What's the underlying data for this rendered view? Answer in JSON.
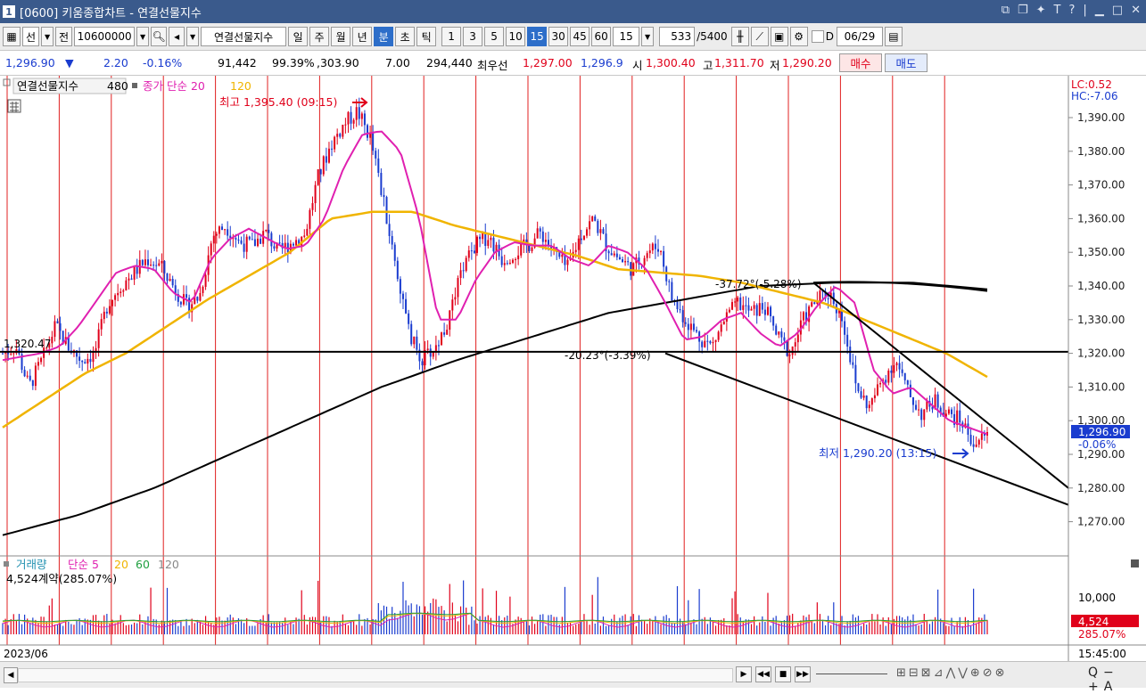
{
  "window": {
    "code": "1",
    "title": "[0600] 키움종합차트 - 연결선물지수",
    "controls": [
      "restore-icon",
      "tile-icon",
      "pin-icon",
      "font-icon",
      "help-icon",
      "minimize-icon",
      "maximize-icon",
      "close-icon"
    ]
  },
  "toolbar": {
    "type_select": "선",
    "period_label": "전",
    "code_value": "10600000",
    "instrument_name": "연결선물지수",
    "period_tabs": [
      "일",
      "주",
      "월",
      "년",
      "분",
      "초",
      "틱"
    ],
    "active_period": "분",
    "intervals": [
      "1",
      "3",
      "5",
      "10",
      "15",
      "30",
      "45",
      "60"
    ],
    "active_interval": "15",
    "interval_input": "15",
    "count_value": "533",
    "count_total": "/5400",
    "checkbox_label": "D",
    "date_value": "06/29"
  },
  "quote": {
    "price": "1,296.90",
    "direction": "▼",
    "change": "2.20",
    "change_pct": "-0.16%",
    "volume": "91,442",
    "vol_ratio": "99.39%",
    "val1": ",303.90",
    "val2": "7.00",
    "open_interest": "294,440",
    "best_label": "최우선",
    "best_ask": "1,297.00",
    "best_bid": "1,296.9",
    "open_label": "시",
    "open": "1,300.40",
    "high_label": "고",
    "high": "1,311.70",
    "low_label": "저",
    "low": "1,290.20",
    "buy_label": "매수",
    "sell_label": "매도"
  },
  "legend": {
    "series_name": "연결선물지수",
    "series_value": "480",
    "ma_label": "종가 단순 20",
    "ma_long": "120"
  },
  "annotations": {
    "high_marker": "최고 1,395.40 (09:15)",
    "low_marker": "최저 1,290.20 (13:15)",
    "hline_label": "1,320.47",
    "trend_label_1": "-37.72°(-5.28%)",
    "trend_label_2": "-20.23°(-3.39%)",
    "lc": "LC:0.52",
    "hc": "HC:-7.06",
    "price_tag": "1,296.90",
    "price_tag_pct": "-0.06%"
  },
  "volume_panel": {
    "title": "거래량",
    "ma_label": "단순 5",
    "ma20": "20",
    "ma60": "60",
    "ma120": "120",
    "last_volume": "4,524계약(285.07%)",
    "axis_label": "10,000",
    "tag_value": "4,524",
    "tag_pct": "285.07%"
  },
  "time_axis": {
    "left_label": "2023/06",
    "right_label": "15:45:00"
  },
  "colors": {
    "up": "#e0001a",
    "down": "#1a3ccf",
    "ma20": "#e020b0",
    "ma120": "#f0b400",
    "trend": "#000000",
    "titlebar": "#3a5a8c"
  },
  "chart_data": {
    "type": "candlestick",
    "instrument": "연결선물지수",
    "interval_minutes": 15,
    "ylim": [
      1262,
      1404
    ],
    "y_ticks": [
      1390,
      1380,
      1370,
      1360,
      1350,
      1340,
      1330,
      1320,
      1310,
      1300,
      1290,
      1280,
      1270
    ],
    "high": 1395.4,
    "low": 1290.2,
    "last": 1296.9,
    "horizontal_line": 1320.47,
    "close_path": [
      1320,
      1322,
      1310,
      1318,
      1328,
      1322,
      1318,
      1320,
      1335,
      1340,
      1344,
      1348,
      1346,
      1340,
      1334,
      1337,
      1355,
      1358,
      1353,
      1352,
      1356,
      1350,
      1353,
      1355,
      1372,
      1382,
      1388,
      1392,
      1384,
      1365,
      1345,
      1325,
      1318,
      1322,
      1330,
      1345,
      1352,
      1355,
      1348,
      1350,
      1352,
      1356,
      1350,
      1345,
      1355,
      1360,
      1352,
      1348,
      1345,
      1350,
      1352,
      1336,
      1330,
      1325,
      1322,
      1330,
      1335,
      1332,
      1334,
      1325,
      1320,
      1330,
      1336,
      1338,
      1330,
      1310,
      1304,
      1312,
      1318,
      1308,
      1302,
      1306,
      1302,
      1300,
      1293,
      1296
    ],
    "ma20_path": [
      1318,
      1319,
      1320,
      1322,
      1328,
      1336,
      1344,
      1346,
      1345,
      1338,
      1335,
      1348,
      1354,
      1357,
      1354,
      1351,
      1352,
      1360,
      1375,
      1385,
      1386,
      1380,
      1360,
      1330,
      1330,
      1342,
      1350,
      1353,
      1352,
      1352,
      1348,
      1346,
      1352,
      1350,
      1345,
      1335,
      1324,
      1325,
      1330,
      1332,
      1326,
      1322,
      1326,
      1334,
      1340,
      1335,
      1315,
      1308,
      1310,
      1305,
      1300,
      1298,
      1296
    ],
    "ma120_path": [
      1298,
      1306,
      1314,
      1320,
      1328,
      1336,
      1343,
      1350,
      1360,
      1362,
      1362,
      1358,
      1355,
      1352,
      1349,
      1345,
      1344,
      1343,
      1341,
      1338,
      1335,
      1330,
      1325,
      1320,
      1313
    ],
    "ma480_path": [
      1266,
      1272,
      1280,
      1290,
      1300,
      1310,
      1318,
      1325,
      1332,
      1336,
      1340,
      1341,
      1341,
      1339
    ],
    "volume_ylim": [
      0,
      14000
    ]
  }
}
